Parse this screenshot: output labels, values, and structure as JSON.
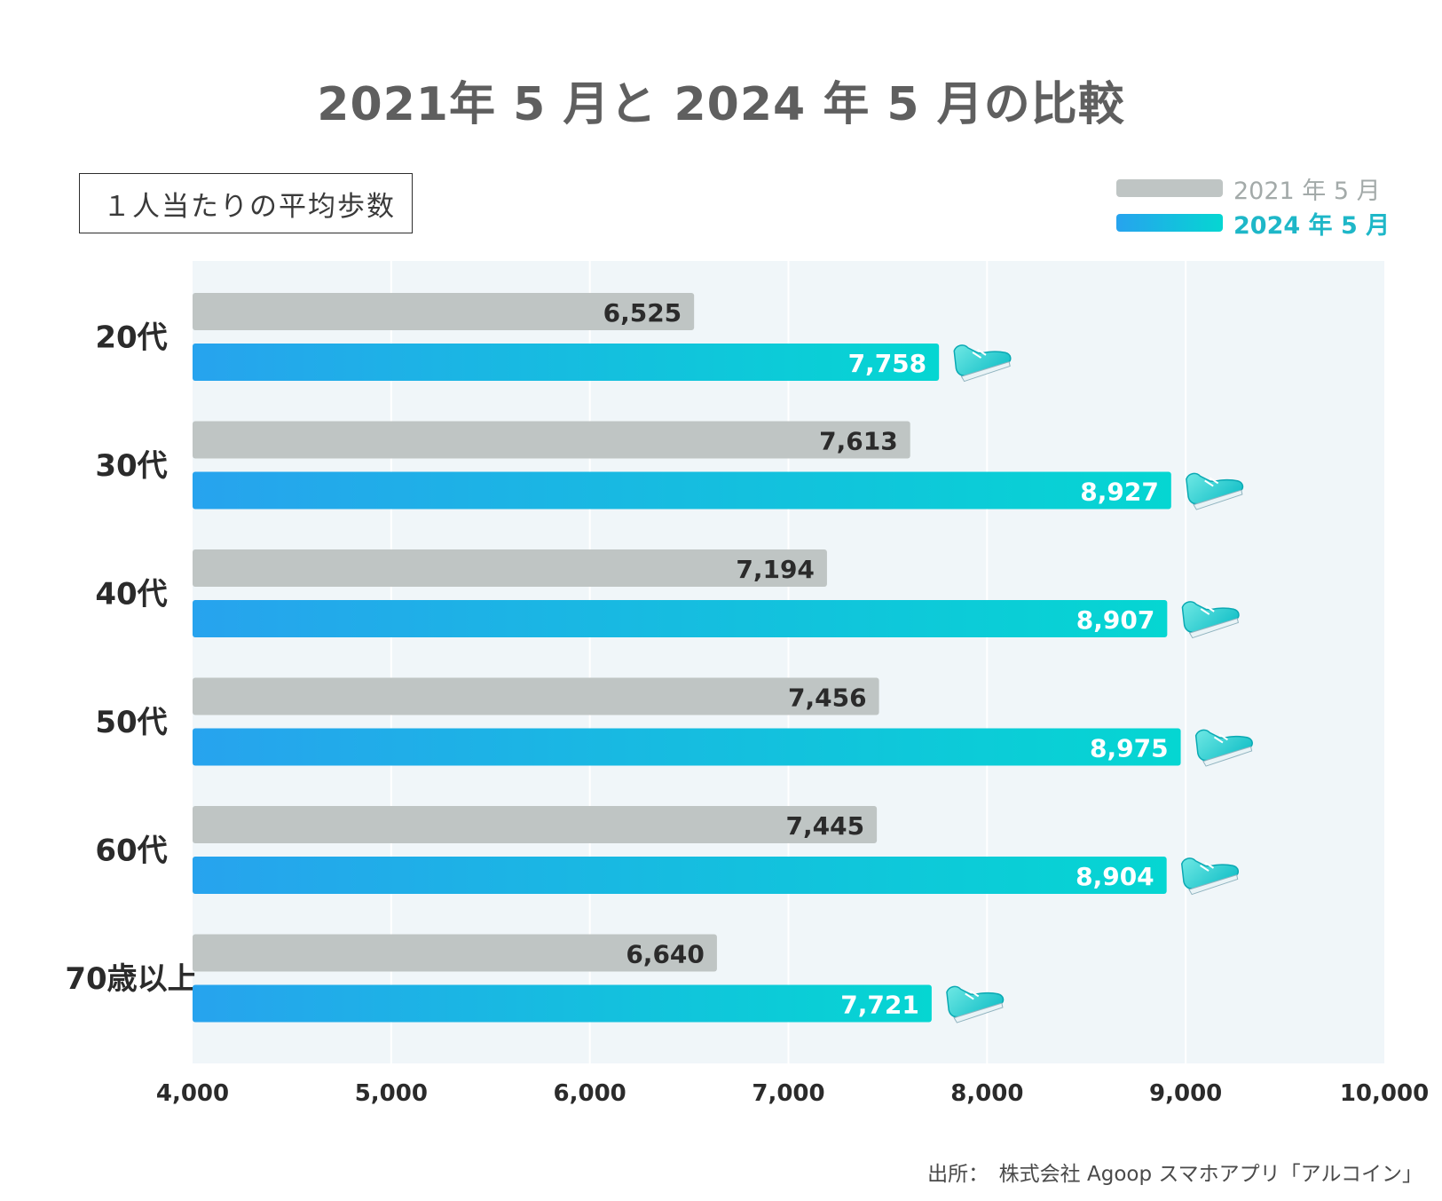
{
  "header": {
    "title": "2021年 5 月と 2024 年 5 月の比較",
    "metric_label": "１人当たりの平均歩数"
  },
  "legend": {
    "items": [
      {
        "label": "2021 年 5 月",
        "color": "#bfc5c4"
      },
      {
        "label": "2024 年 5 月",
        "color": "#1eb7c8"
      }
    ]
  },
  "source": {
    "text": "出所：　株式会社 Agoop スマホアプリ「アルコイン」"
  },
  "chart_data": {
    "type": "bar",
    "orientation": "horizontal",
    "title": "2021年 5 月と 2024 年 5 月の比較",
    "categories": [
      "20代",
      "30代",
      "40代",
      "50代",
      "60代",
      "70歳以上"
    ],
    "series": [
      {
        "name": "2021 年 5 月",
        "values": [
          6525,
          7613,
          7194,
          7456,
          7445,
          6640
        ],
        "color": "#bfc5c4"
      },
      {
        "name": "2024 年 5 月",
        "values": [
          7758,
          8927,
          8907,
          8975,
          8904,
          7721
        ],
        "color_start": "#27a3ee",
        "color_end": "#05d6d2"
      }
    ],
    "data_labels": {
      "2021": [
        "6,525",
        "7,613",
        "7,194",
        "7,456",
        "7,445",
        "6,640"
      ],
      "2024": [
        "7,758",
        "8,927",
        "8,907",
        "8,975",
        "8,904",
        "7,721"
      ]
    },
    "x_ticks": [
      4000,
      5000,
      6000,
      7000,
      8000,
      9000,
      10000
    ],
    "x_tick_labels": [
      "4,000",
      "5,000",
      "6,000",
      "7,000",
      "8,000",
      "9,000",
      "10,000"
    ],
    "xlim": [
      4000,
      10000
    ],
    "grid": true,
    "legend_position": "top-right",
    "marker_icon": "sneaker-icon",
    "plot_background": "#f0f6f9"
  }
}
